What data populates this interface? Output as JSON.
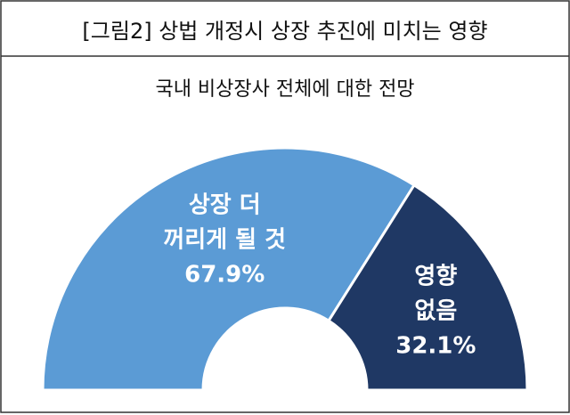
{
  "chart_data": {
    "type": "half-donut",
    "title": "[그림2] 상법 개정시 상장 추진에 미치는 영향",
    "subtitle": "국내 비상장사 전체에 대한 전망",
    "categories": [
      [
        "상장 더",
        "꺼리게 될 것"
      ],
      [
        "영향",
        "없음"
      ]
    ],
    "values": [
      67.9,
      32.1
    ],
    "value_labels": [
      "67.9%",
      "32.1%"
    ],
    "colors": [
      "#5b9bd5",
      "#1f3864"
    ]
  }
}
